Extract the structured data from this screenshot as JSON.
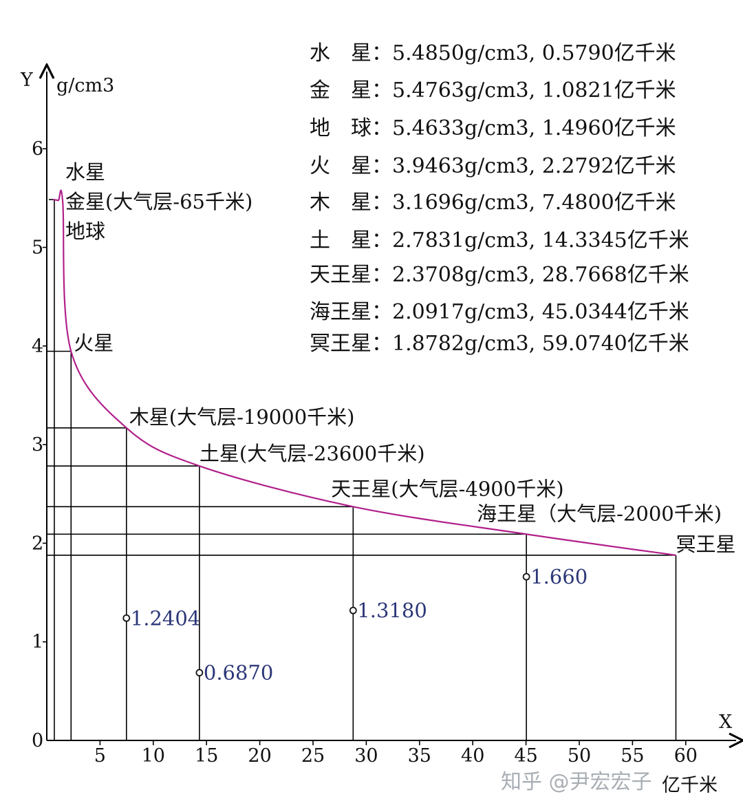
{
  "chart_data": {
    "type": "line",
    "x_axis": {
      "letter": "X",
      "unit": "亿千米",
      "ticks": [
        5,
        10,
        15,
        20,
        25,
        30,
        35,
        40,
        45,
        50,
        55,
        60
      ],
      "range": [
        0,
        64
      ]
    },
    "y_axis": {
      "letter": "Y",
      "unit": "g/cm3",
      "ticks": [
        0,
        1,
        2,
        3,
        4,
        5,
        6
      ],
      "range": [
        0,
        6.6
      ]
    },
    "grid": false,
    "curve_color": "#b0208a",
    "planets": [
      {
        "name": "水星",
        "x": 0.579,
        "y": 5.485
      },
      {
        "name": "金星",
        "x": 1.0821,
        "y": 5.4763
      },
      {
        "name": "地球",
        "x": 1.496,
        "y": 5.4633
      },
      {
        "name": "火星",
        "x": 2.2792,
        "y": 3.9463
      },
      {
        "name": "木星",
        "x": 7.48,
        "y": 3.1696
      },
      {
        "name": "土星",
        "x": 14.3345,
        "y": 2.7831
      },
      {
        "name": "天王星",
        "x": 28.7668,
        "y": 2.3708
      },
      {
        "name": "海王星",
        "x": 45.0344,
        "y": 2.0917
      },
      {
        "name": "冥王星",
        "x": 59.074,
        "y": 1.8782
      }
    ],
    "labels": [
      {
        "text": "水星",
        "at_x": 0.579,
        "at_y": 5.485
      },
      {
        "text": "金星(大气层-65千米)",
        "at_x": 0.579,
        "at_y": 5.485
      },
      {
        "text": "地球",
        "at_x": 0.579,
        "at_y": 5.485
      },
      {
        "text": "火星",
        "at_x": 2.2792,
        "at_y": 3.9463
      },
      {
        "text": "木星(大气层-19000千米)",
        "at_x": 7.48,
        "at_y": 3.1696
      },
      {
        "text": "土星(大气层-23600千米)",
        "at_x": 14.3345,
        "at_y": 2.7831
      },
      {
        "text": "天王星(大气层-4900千米)",
        "at_x": 28.7668,
        "at_y": 2.3708
      },
      {
        "text": "海王星（大气层-2000千米)",
        "at_x": 45.0344,
        "at_y": 2.0917
      },
      {
        "text": "冥王星",
        "at_x": 59.074,
        "at_y": 1.8782
      }
    ],
    "ratio_points": [
      {
        "x": 7.48,
        "y": 1.2404,
        "text": "1.2404"
      },
      {
        "x": 14.3345,
        "y": 0.687,
        "text": "0.6870"
      },
      {
        "x": 28.7668,
        "y": 1.318,
        "text": "1.3180"
      },
      {
        "x": 45.0344,
        "y": 1.66,
        "text": "1.660"
      }
    ],
    "legend": [
      "水　星：5.4850g/cm3, 0.5790亿千米",
      "金　星：5.4763g/cm3, 1.0821亿千米",
      "地　球：5.4633g/cm3, 1.4960亿千米",
      "火　星：3.9463g/cm3, 2.2792亿千米",
      "木　星：3.1696g/cm3, 7.4800亿千米",
      "土　星：2.7831g/cm3, 14.3345亿千米",
      "天王星：2.3708g/cm3, 28.7668亿千米",
      "海王星：2.0917g/cm3, 45.0344亿千米",
      "冥王星：1.8782g/cm3, 59.0740亿千米"
    ]
  },
  "watermark": "知乎 @尹宏宏子"
}
